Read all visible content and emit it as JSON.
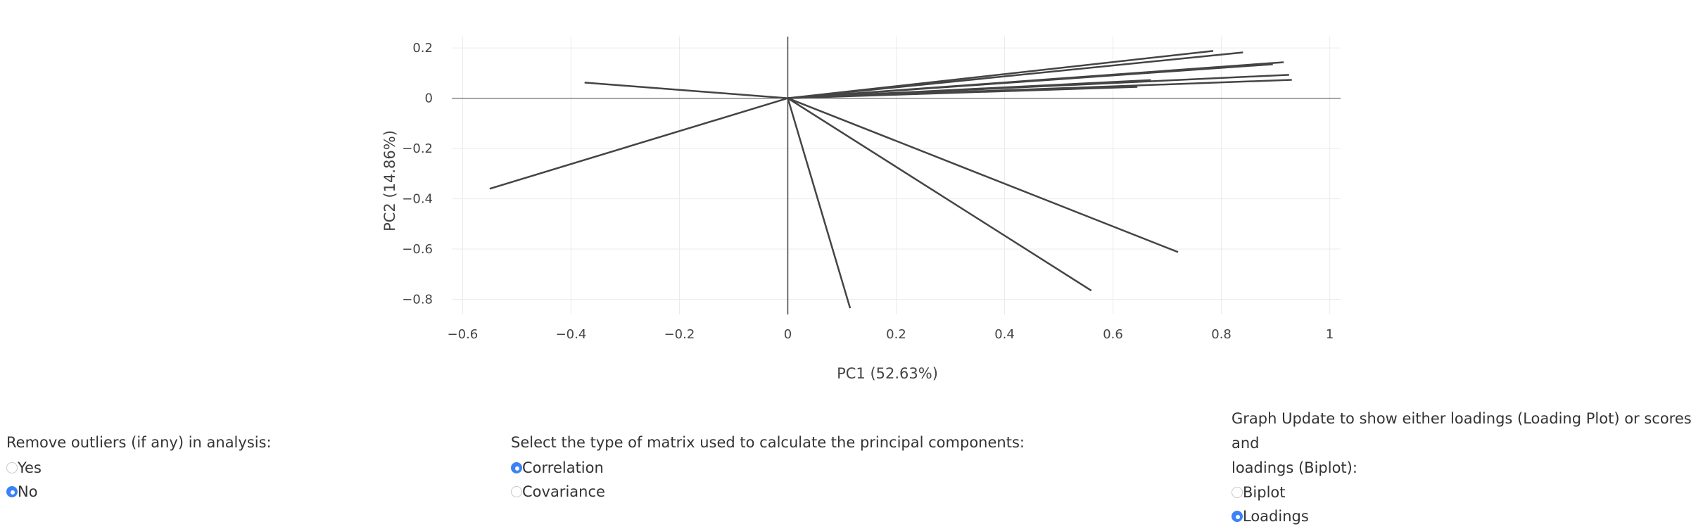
{
  "chart_data": {
    "type": "line",
    "title": "",
    "xlabel": "PC1 (52.63%)",
    "ylabel": "PC2 (14.86%)",
    "xlim": [
      -0.62,
      1.02
    ],
    "ylim": [
      -0.86,
      0.245
    ],
    "xticks": [
      -0.6,
      -0.4,
      -0.2,
      0,
      0.2,
      0.4,
      0.6,
      0.8,
      1
    ],
    "xtick_labels": [
      "−0.6",
      "−0.4",
      "−0.2",
      "0",
      "0.2",
      "0.4",
      "0.6",
      "0.8",
      "1"
    ],
    "yticks": [
      0.2,
      0,
      -0.2,
      -0.4,
      -0.6,
      -0.8
    ],
    "ytick_labels": [
      "0.2",
      "0",
      "−0.2",
      "−0.4",
      "−0.6",
      "−0.8"
    ],
    "grid": true,
    "series": [
      {
        "name": "loading-1",
        "x": [
          0,
          0.785
        ],
        "y": [
          0,
          0.188
        ]
      },
      {
        "name": "loading-2",
        "x": [
          0,
          0.84
        ],
        "y": [
          0,
          0.182
        ]
      },
      {
        "name": "loading-3",
        "x": [
          0,
          0.915
        ],
        "y": [
          0,
          0.143
        ]
      },
      {
        "name": "loading-4",
        "x": [
          0,
          0.895
        ],
        "y": [
          0,
          0.135
        ]
      },
      {
        "name": "loading-5",
        "x": [
          0,
          0.925
        ],
        "y": [
          0,
          0.093
        ]
      },
      {
        "name": "loading-6",
        "x": [
          0,
          0.93
        ],
        "y": [
          0,
          0.073
        ]
      },
      {
        "name": "loading-7",
        "x": [
          0,
          0.67
        ],
        "y": [
          0,
          0.072
        ]
      },
      {
        "name": "loading-8",
        "x": [
          0,
          0.645
        ],
        "y": [
          0,
          0.045
        ]
      },
      {
        "name": "loading-9",
        "x": [
          0,
          -0.375
        ],
        "y": [
          0,
          0.062
        ]
      },
      {
        "name": "loading-10",
        "x": [
          0,
          -0.55
        ],
        "y": [
          0,
          -0.36
        ]
      },
      {
        "name": "loading-11",
        "x": [
          0,
          0.72
        ],
        "y": [
          0,
          -0.612
        ]
      },
      {
        "name": "loading-12",
        "x": [
          0,
          0.56
        ],
        "y": [
          0,
          -0.765
        ]
      },
      {
        "name": "loading-13",
        "x": [
          0,
          0.115
        ],
        "y": [
          0,
          -0.835
        ]
      }
    ],
    "line_color": "#444444"
  },
  "controls": {
    "outliers": {
      "label": "Remove outliers (if any) in analysis:",
      "options": [
        "Yes",
        "No"
      ],
      "selected": "No"
    },
    "matrix": {
      "label": "Select the type of matrix used to calculate the principal components:",
      "options": [
        "Correlation",
        "Covariance"
      ],
      "selected": "Correlation"
    },
    "graph": {
      "label_line1": "Graph Update to show either loadings (Loading Plot) or scores and",
      "label_line2": "loadings (Biplot):",
      "options": [
        "Biplot",
        "Loadings"
      ],
      "selected": "Loadings"
    }
  }
}
